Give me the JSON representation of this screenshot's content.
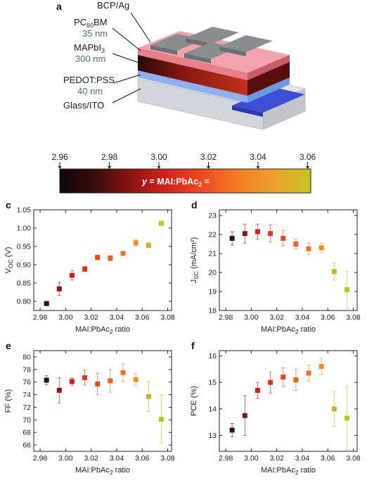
{
  "panel_a": {
    "letter": "a",
    "layers": [
      {
        "name": "BCP/Ag",
        "thickness": ""
      },
      {
        "name": "PC60BM",
        "thickness": "35 nm"
      },
      {
        "name": "MAPbI3",
        "thickness": "300 nm"
      },
      {
        "name": "PEDOT:PSS",
        "thickness": "40 nm"
      },
      {
        "name": "Glass/ITO",
        "thickness": ""
      }
    ]
  },
  "colorbar": {
    "ticks": [
      "2.96",
      "2.98",
      "3.00",
      "3.02",
      "3.04",
      "3.06"
    ],
    "formula_italic": "y",
    "formula_rest": " = MAI:PbAc",
    "formula_sub": "2",
    "formula_tail": " =",
    "colors": [
      "#0f0608",
      "#3a0c0c",
      "#8e1414",
      "#d5231d",
      "#ef4a20",
      "#f47d24",
      "#e9a22a",
      "#c9c427"
    ]
  },
  "chart_data": [
    {
      "letter": "c",
      "type": "scatter",
      "ylabel_main": "V",
      "ylabel_sub": "OC",
      "ylabel_tail": " (V)",
      "xlabel_main": "MAI:PbAc",
      "xlabel_sub": "2",
      "xlabel_tail": " ratio",
      "xlim": [
        2.975,
        3.083
      ],
      "ylim": [
        0.775,
        1.05
      ],
      "xticks": [
        "2.98",
        "3.00",
        "3.02",
        "3.04",
        "3.06",
        "3.08"
      ],
      "yticks": [
        "0.80",
        "0.85",
        "0.90",
        "0.95",
        "1.00",
        "1.05"
      ],
      "points": [
        {
          "x": 2.985,
          "y": 0.794,
          "err": 0.005,
          "color": "#3d0a0d"
        },
        {
          "x": 2.995,
          "y": 0.834,
          "err": 0.018,
          "color": "#8b1516"
        },
        {
          "x": 3.005,
          "y": 0.871,
          "err": 0.013,
          "color": "#d0201d"
        },
        {
          "x": 3.015,
          "y": 0.888,
          "err": 0.007,
          "color": "#e5321e"
        },
        {
          "x": 3.025,
          "y": 0.92,
          "err": 0.004,
          "color": "#ee4320"
        },
        {
          "x": 3.035,
          "y": 0.918,
          "err": 0.007,
          "color": "#f05c22"
        },
        {
          "x": 3.045,
          "y": 0.931,
          "err": 0.005,
          "color": "#f37123"
        },
        {
          "x": 3.055,
          "y": 0.96,
          "err": 0.009,
          "color": "#e8902a"
        },
        {
          "x": 3.065,
          "y": 0.953,
          "err": 0.007,
          "color": "#d3ae2a"
        },
        {
          "x": 3.075,
          "y": 1.013,
          "err": 0.003,
          "color": "#bfc426"
        }
      ]
    },
    {
      "letter": "d",
      "type": "scatter",
      "ylabel_main": "J",
      "ylabel_sub": "SC",
      "ylabel_tail": " (mA/cm²)",
      "xlabel_main": "MAI:PbAc",
      "xlabel_sub": "2",
      "xlabel_tail": " ratio",
      "xlim": [
        2.975,
        3.083
      ],
      "ylim": [
        18,
        23.3
      ],
      "xticks": [
        "2.98",
        "3.00",
        "3.02",
        "3.04",
        "3.06",
        "3.08"
      ],
      "yticks": [
        "18",
        "19",
        "20",
        "21",
        "22",
        "23"
      ],
      "points": [
        {
          "x": 2.985,
          "y": 21.8,
          "err": 0.35,
          "color": "#3d0a0d"
        },
        {
          "x": 2.995,
          "y": 22.05,
          "err": 0.5,
          "color": "#8b1516"
        },
        {
          "x": 3.005,
          "y": 22.15,
          "err": 0.4,
          "color": "#d0201d"
        },
        {
          "x": 3.015,
          "y": 22.05,
          "err": 0.45,
          "color": "#e5321e"
        },
        {
          "x": 3.025,
          "y": 21.8,
          "err": 0.4,
          "color": "#ee4320"
        },
        {
          "x": 3.035,
          "y": 21.5,
          "err": 0.25,
          "color": "#f05c22"
        },
        {
          "x": 3.045,
          "y": 21.25,
          "err": 0.3,
          "color": "#f37123"
        },
        {
          "x": 3.055,
          "y": 21.3,
          "err": 0.25,
          "color": "#e8902a"
        },
        {
          "x": 3.065,
          "y": 20.05,
          "err": 0.45,
          "color": "#d3ae2a"
        },
        {
          "x": 3.075,
          "y": 19.1,
          "err": 0.95,
          "color": "#bfc426"
        }
      ]
    },
    {
      "letter": "e",
      "type": "scatter",
      "ylabel_main": "FF (%)",
      "ylabel_sub": "",
      "ylabel_tail": "",
      "xlabel_main": "MAI:PbAc",
      "xlabel_sub": "2",
      "xlabel_tail": " ratio",
      "xlim": [
        2.975,
        3.083
      ],
      "ylim": [
        65,
        81
      ],
      "xticks": [
        "2.98",
        "3.00",
        "3.02",
        "3.04",
        "3.06",
        "3.08"
      ],
      "yticks": [
        "66",
        "68",
        "70",
        "72",
        "74",
        "76",
        "78",
        "80"
      ],
      "points": [
        {
          "x": 2.985,
          "y": 76.3,
          "err": 0.7,
          "color": "#3d0a0d"
        },
        {
          "x": 2.995,
          "y": 74.7,
          "err": 2.0,
          "color": "#8b1516"
        },
        {
          "x": 3.005,
          "y": 76.1,
          "err": 0.6,
          "color": "#d0201d"
        },
        {
          "x": 3.015,
          "y": 76.7,
          "err": 1.2,
          "color": "#e5321e"
        },
        {
          "x": 3.025,
          "y": 75.7,
          "err": 1.7,
          "color": "#ee4320"
        },
        {
          "x": 3.035,
          "y": 76.2,
          "err": 1.8,
          "color": "#f05c22"
        },
        {
          "x": 3.045,
          "y": 77.5,
          "err": 1.4,
          "color": "#f37123"
        },
        {
          "x": 3.055,
          "y": 76.4,
          "err": 0.9,
          "color": "#e8902a"
        },
        {
          "x": 3.065,
          "y": 73.7,
          "err": 2.4,
          "color": "#d3ae2a"
        },
        {
          "x": 3.075,
          "y": 70.1,
          "err": 3.8,
          "color": "#bfc426"
        }
      ]
    },
    {
      "letter": "f",
      "type": "scatter",
      "ylabel_main": "PCE (%)",
      "ylabel_sub": "",
      "ylabel_tail": "",
      "xlabel_main": "MAI:PbAc",
      "xlabel_sub": "2",
      "xlabel_tail": " ratio",
      "xlim": [
        2.975,
        3.083
      ],
      "ylim": [
        12.4,
        16.2
      ],
      "xticks": [
        "2.98",
        "3.00",
        "3.02",
        "3.04",
        "3.06",
        "3.08"
      ],
      "yticks": [
        "13",
        "14",
        "15",
        "16"
      ],
      "points": [
        {
          "x": 2.985,
          "y": 13.2,
          "err": 0.25,
          "color": "#3d0a0d"
        },
        {
          "x": 2.995,
          "y": 13.75,
          "err": 0.75,
          "color": "#8b1516"
        },
        {
          "x": 3.005,
          "y": 14.7,
          "err": 0.3,
          "color": "#d0201d"
        },
        {
          "x": 3.015,
          "y": 15.0,
          "err": 0.4,
          "color": "#e5321e"
        },
        {
          "x": 3.025,
          "y": 15.2,
          "err": 0.35,
          "color": "#ee4320"
        },
        {
          "x": 3.035,
          "y": 15.1,
          "err": 0.4,
          "color": "#f05c22"
        },
        {
          "x": 3.045,
          "y": 15.35,
          "err": 0.3,
          "color": "#f37123"
        },
        {
          "x": 3.055,
          "y": 15.6,
          "err": 0.3,
          "color": "#e8902a"
        },
        {
          "x": 3.065,
          "y": 14.0,
          "err": 0.65,
          "color": "#d3ae2a"
        },
        {
          "x": 3.075,
          "y": 13.65,
          "err": 1.2,
          "color": "#bfc426"
        }
      ]
    }
  ]
}
